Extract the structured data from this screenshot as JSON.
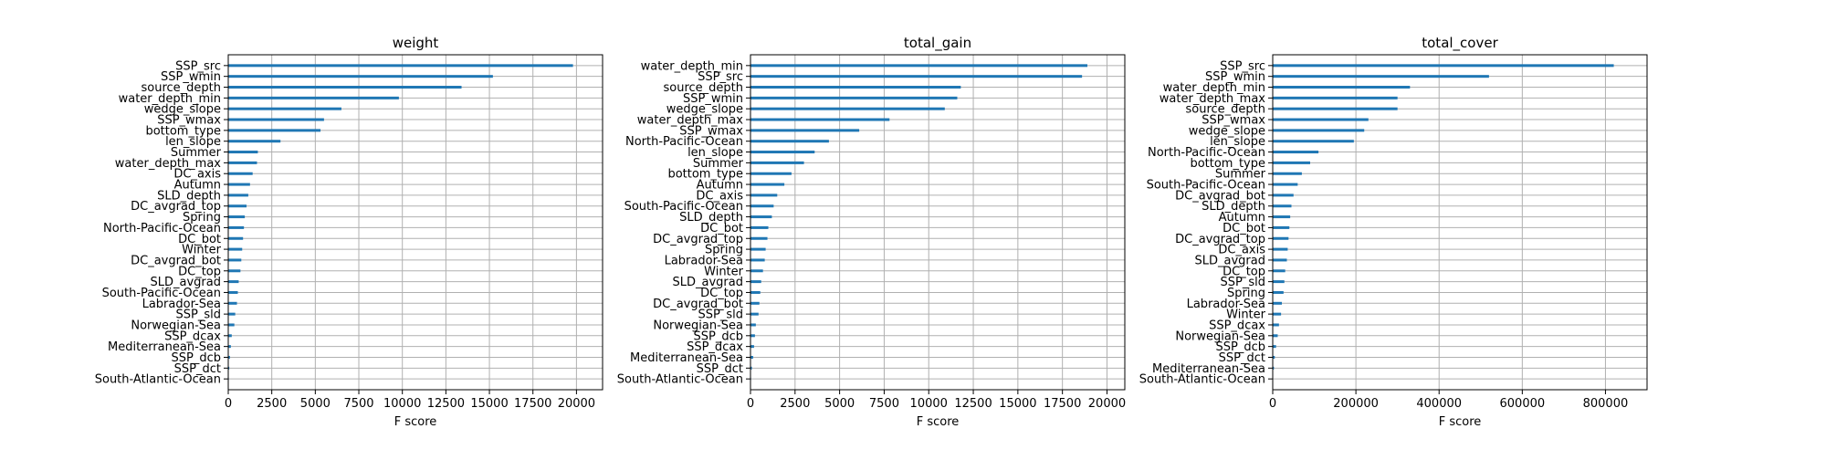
{
  "chart_data": [
    {
      "type": "bar",
      "orientation": "horizontal",
      "title": "weight",
      "xlabel": "F score",
      "ylabel": "",
      "xlim": [
        0,
        21500
      ],
      "xticks": [
        0,
        2500,
        5000,
        7500,
        10000,
        12500,
        15000,
        17500,
        20000
      ],
      "grid": true,
      "categories": [
        "SSP_src",
        "SSP_wmin",
        "source_depth",
        "water_depth_min",
        "wedge_slope",
        "SSP_wmax",
        "bottom_type",
        "len_slope",
        "Summer",
        "water_depth_max",
        "DC_axis",
        "Autumn",
        "SLD_depth",
        "DC_avgrad_top",
        "Spring",
        "North-Pacific-Ocean",
        "DC_bot",
        "Winter",
        "DC_avgrad_bot",
        "DC_top",
        "SLD_avgrad",
        "South-Pacific-Ocean",
        "Labrador-Sea",
        "SSP_sld",
        "Norwegian-Sea",
        "SSP_dcax",
        "Mediterranean-Sea",
        "SSP_dcb",
        "SSP_dct",
        "South-Atlantic-Ocean"
      ],
      "values": [
        19800,
        15200,
        13400,
        9800,
        6500,
        5500,
        5300,
        3000,
        1700,
        1650,
        1400,
        1250,
        1150,
        1050,
        950,
        900,
        850,
        800,
        750,
        700,
        600,
        550,
        500,
        400,
        350,
        200,
        150,
        100,
        60,
        30
      ]
    },
    {
      "type": "bar",
      "orientation": "horizontal",
      "title": "total_gain",
      "xlabel": "F score",
      "ylabel": "",
      "xlim": [
        0,
        21000
      ],
      "xticks": [
        0,
        2500,
        5000,
        7500,
        10000,
        12500,
        15000,
        17500,
        20000
      ],
      "grid": true,
      "categories": [
        "water_depth_min",
        "SSP_src",
        "source_depth",
        "SSP_wmin",
        "wedge_slope",
        "water_depth_max",
        "SSP_wmax",
        "North-Pacific-Ocean",
        "len_slope",
        "Summer",
        "bottom_type",
        "Autumn",
        "DC_axis",
        "South-Pacific-Ocean",
        "SLD_depth",
        "DC_bot",
        "DC_avgrad_top",
        "Spring",
        "Labrador-Sea",
        "Winter",
        "SLD_avgrad",
        "DC_top",
        "DC_avgrad_bot",
        "SSP_sld",
        "Norwegian-Sea",
        "SSP_dcb",
        "SSP_dcax",
        "Mediterranean-Sea",
        "SSP_dct",
        "South-Atlantic-Ocean"
      ],
      "values": [
        18900,
        18600,
        11800,
        11600,
        10900,
        7800,
        6100,
        4400,
        3600,
        3000,
        2300,
        1900,
        1500,
        1300,
        1200,
        1000,
        950,
        850,
        800,
        700,
        600,
        550,
        500,
        450,
        300,
        250,
        200,
        150,
        80,
        30
      ]
    },
    {
      "type": "bar",
      "orientation": "horizontal",
      "title": "total_cover",
      "xlabel": "F score",
      "ylabel": "",
      "xlim": [
        0,
        900000
      ],
      "xticks": [
        0,
        200000,
        400000,
        600000,
        800000
      ],
      "grid": true,
      "categories": [
        "SSP_src",
        "SSP_wmin",
        "water_depth_min",
        "water_depth_max",
        "source_depth",
        "SSP_wmax",
        "wedge_slope",
        "len_slope",
        "North-Pacific-Ocean",
        "bottom_type",
        "Summer",
        "South-Pacific-Ocean",
        "DC_avgrad_bot",
        "SLD_depth",
        "Autumn",
        "DC_bot",
        "DC_avgrad_top",
        "DC_axis",
        "SLD_avgrad",
        "DC_top",
        "SSP_sld",
        "Spring",
        "Labrador-Sea",
        "Winter",
        "SSP_dcax",
        "Norwegian-Sea",
        "SSP_dcb",
        "SSP_dct",
        "Mediterranean-Sea",
        "South-Atlantic-Ocean"
      ],
      "values": [
        820000,
        520000,
        330000,
        300000,
        300000,
        230000,
        220000,
        195000,
        110000,
        90000,
        70000,
        60000,
        50000,
        45000,
        42000,
        40000,
        38000,
        36000,
        34000,
        30000,
        28000,
        26000,
        22000,
        20000,
        15000,
        12000,
        8000,
        5000,
        3000,
        1000
      ]
    }
  ]
}
